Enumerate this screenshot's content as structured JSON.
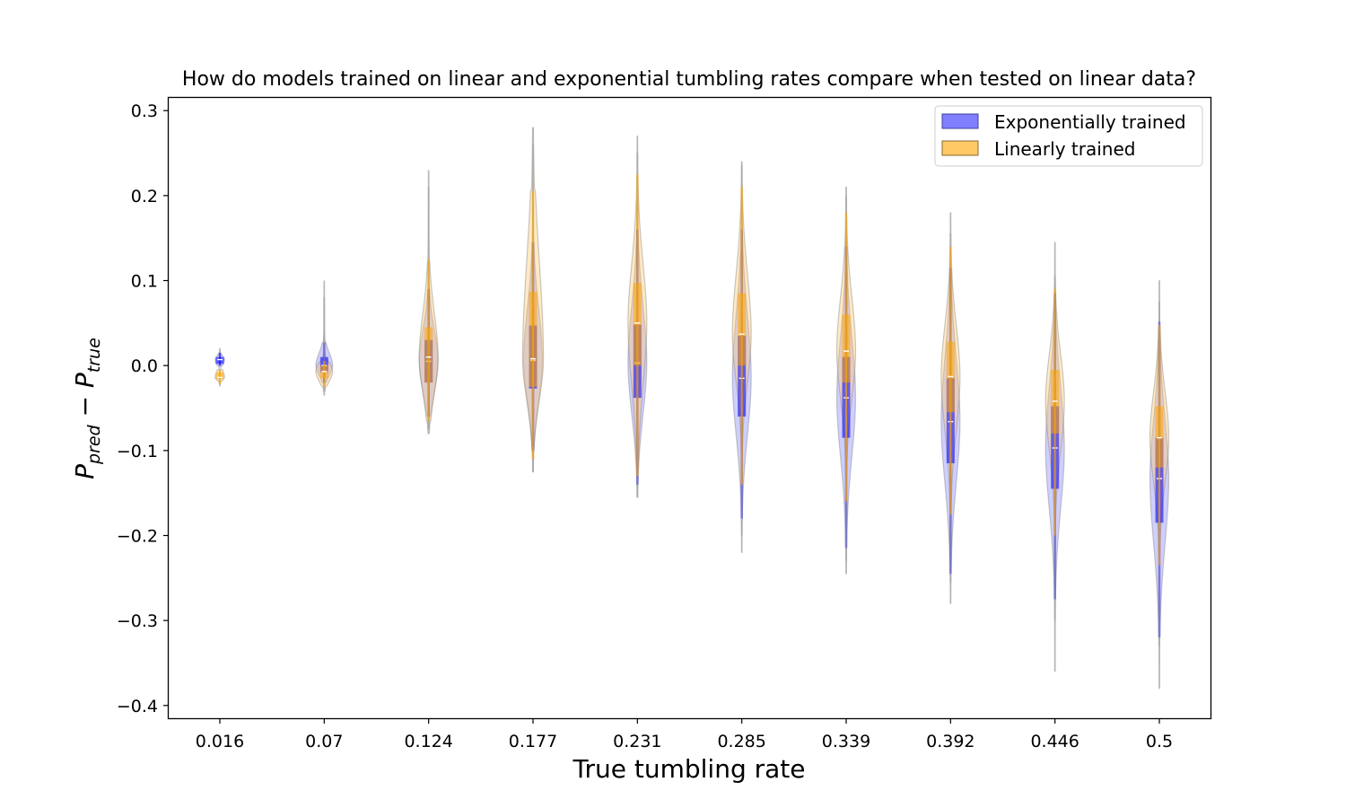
{
  "chart_data": {
    "type": "violin",
    "title": "How do models trained on linear and exponential tumbling rates compare when tested on linear data?",
    "xlabel": "True tumbling rate",
    "ylabel_main": "P",
    "ylabel_sub1": "pred",
    "ylabel_minus": " − ",
    "ylabel_sub2": "true",
    "ylim": [
      -0.415,
      0.315
    ],
    "yticks": [
      0.3,
      0.2,
      0.1,
      0.0,
      -0.1,
      -0.2,
      -0.3,
      -0.4
    ],
    "ytick_labels": [
      "0.3",
      "0.2",
      "0.1",
      "0.0",
      "−0.1",
      "−0.2",
      "−0.3",
      "−0.4"
    ],
    "categories": [
      "0.016",
      "0.07",
      "0.124",
      "0.177",
      "0.231",
      "0.285",
      "0.339",
      "0.392",
      "0.446",
      "0.5"
    ],
    "legend_position": "top-right",
    "series": [
      {
        "name": "Exponentially trained",
        "color": "#0000ff",
        "fill": "#8080ff",
        "median": [
          0.007,
          0.0,
          0.005,
          0.006,
          0.003,
          -0.015,
          -0.038,
          -0.066,
          -0.097,
          -0.133
        ],
        "q1": [
          0.002,
          -0.008,
          -0.02,
          -0.027,
          -0.038,
          -0.06,
          -0.085,
          -0.115,
          -0.145,
          -0.185
        ],
        "q3": [
          0.01,
          0.01,
          0.03,
          0.047,
          0.048,
          0.035,
          0.01,
          -0.015,
          -0.048,
          -0.085
        ],
        "whisker_low": [
          0.0,
          -0.02,
          -0.06,
          -0.1,
          -0.14,
          -0.18,
          -0.215,
          -0.245,
          -0.275,
          -0.32
        ],
        "whisker_high": [
          0.015,
          0.027,
          0.09,
          0.145,
          0.16,
          0.16,
          0.14,
          0.115,
          0.085,
          0.052
        ],
        "min": [
          -0.002,
          -0.035,
          -0.075,
          -0.125,
          -0.155,
          -0.22,
          -0.245,
          -0.28,
          -0.36,
          -0.38
        ],
        "max": [
          0.02,
          0.08,
          0.21,
          0.26,
          0.25,
          0.24,
          0.2,
          0.155,
          0.105,
          0.075
        ],
        "width": [
          0.045,
          0.08,
          0.09,
          0.09,
          0.09,
          0.09,
          0.09,
          0.09,
          0.09,
          0.09
        ]
      },
      {
        "name": "Linearly trained",
        "color": "#ffa500",
        "fill": "#ffc966",
        "median": [
          -0.014,
          -0.007,
          0.01,
          0.008,
          0.05,
          0.037,
          0.017,
          -0.013,
          -0.042,
          -0.085
        ],
        "q1": [
          -0.016,
          -0.015,
          -0.02,
          -0.025,
          0.0,
          0.0,
          -0.02,
          -0.055,
          -0.08,
          -0.12
        ],
        "q3": [
          -0.008,
          0.0,
          0.045,
          0.087,
          0.097,
          0.085,
          0.06,
          0.028,
          -0.005,
          -0.048
        ],
        "whisker_low": [
          -0.022,
          -0.025,
          -0.065,
          -0.11,
          -0.13,
          -0.14,
          -0.16,
          -0.175,
          -0.2,
          -0.235
        ],
        "whisker_high": [
          -0.005,
          0.005,
          0.125,
          0.205,
          0.225,
          0.21,
          0.18,
          0.14,
          0.09,
          0.048
        ],
        "min": [
          -0.024,
          -0.03,
          -0.08,
          -0.125,
          -0.155,
          -0.2,
          -0.23,
          -0.255,
          -0.3,
          -0.33
        ],
        "max": [
          -0.004,
          0.1,
          0.23,
          0.28,
          0.27,
          0.235,
          0.21,
          0.18,
          0.145,
          0.1
        ],
        "width": [
          0.045,
          0.08,
          0.09,
          0.1,
          0.09,
          0.09,
          0.09,
          0.09,
          0.09,
          0.09
        ]
      }
    ]
  }
}
